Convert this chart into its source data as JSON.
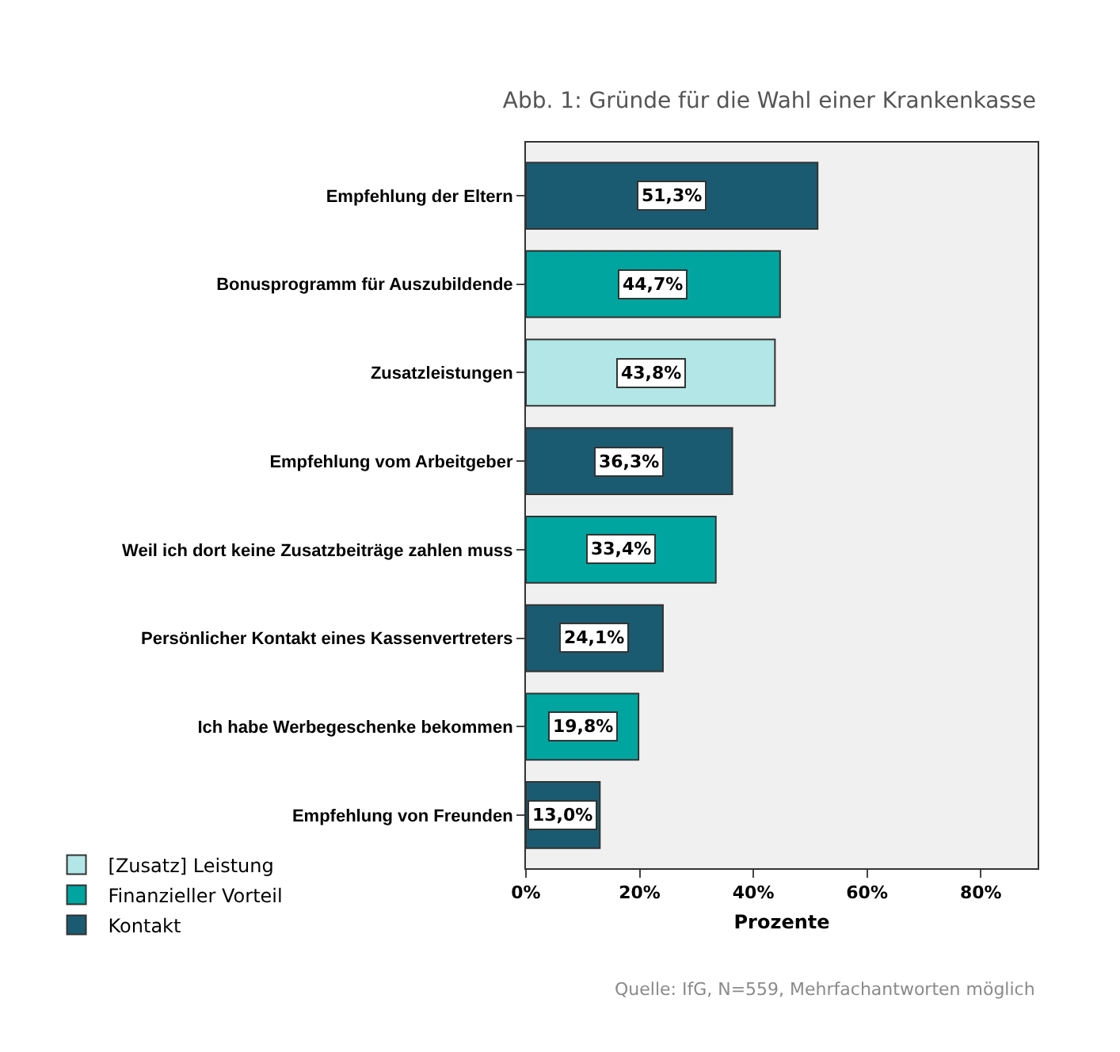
{
  "chart_data": {
    "type": "bar",
    "orientation": "horizontal",
    "title": "Abb. 1: Gründe für die Wahl einer Krankenkasse",
    "xlabel": "Prozente",
    "categories": [
      "Empfehlung der Eltern",
      "Bonusprogramm für Auszubildende",
      "Zusatzleistungen",
      "Empfehlung vom Arbeitgeber",
      "Weil ich dort keine Zusatzbeiträge zahlen muss",
      "Persönlicher Kontakt eines Kassenvertreters",
      "Ich habe Werbegeschenke bekommen",
      "Empfehlung von Freunden"
    ],
    "series": [
      {
        "name": "[Zusatz] Leistung",
        "color": "#b3e6e6",
        "values": [
          null,
          null,
          43.8,
          null,
          null,
          null,
          null,
          null
        ],
        "value_labels": [
          null,
          null,
          "43,8%",
          null,
          null,
          null,
          null,
          null
        ]
      },
      {
        "name": "Finanzieller Vorteil",
        "color": "#00a5a0",
        "values": [
          null,
          44.7,
          null,
          null,
          33.4,
          null,
          19.8,
          null
        ],
        "value_labels": [
          null,
          "44,7%",
          null,
          null,
          "33,4%",
          null,
          "19,8%",
          null
        ]
      },
      {
        "name": "Kontakt",
        "color": "#1b5b71",
        "values": [
          51.3,
          null,
          null,
          36.3,
          null,
          24.1,
          null,
          13.0
        ],
        "value_labels": [
          "51,3%",
          null,
          null,
          "36,3%",
          null,
          "24,1%",
          null,
          "13,0%"
        ]
      }
    ],
    "xlim": [
      0,
      90
    ],
    "xticks": [
      {
        "value": 0,
        "label": "0%"
      },
      {
        "value": 20,
        "label": "20%"
      },
      {
        "value": 40,
        "label": "40%"
      },
      {
        "value": 60,
        "label": "60%"
      },
      {
        "value": 80,
        "label": "80%"
      }
    ],
    "grid": false,
    "legend": "bottom left",
    "annotations": [
      "Quelle: IfG, N=559, Mehrfachantworten möglich"
    ]
  }
}
